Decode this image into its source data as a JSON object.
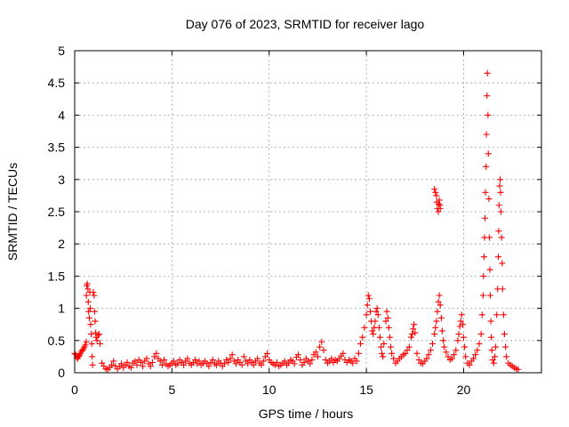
{
  "chart_data": {
    "type": "scatter",
    "title": "Day 076 of 2023, SRMTID for receiver lago",
    "xlabel": "GPS time / hours",
    "ylabel": "SRMTID / TECUs",
    "xlim": [
      0,
      24
    ],
    "ylim": [
      0,
      5
    ],
    "xticks": [
      0,
      5,
      10,
      15,
      20
    ],
    "xtick_labels": [
      "0",
      "5",
      "10",
      "15",
      "20"
    ],
    "yticks": [
      0,
      0.5,
      1,
      1.5,
      2,
      2.5,
      3,
      3.5,
      4,
      4.5,
      5
    ],
    "ytick_labels": [
      "0",
      "0.5",
      "1",
      "1.5",
      "2",
      "2.5",
      "3",
      "3.5",
      "4",
      "4.5",
      "5"
    ],
    "grid": true,
    "marker": "+",
    "color": "#ff0000",
    "series": [
      {
        "name": "lago",
        "points": [
          [
            0.0,
            0.3
          ],
          [
            0.05,
            0.28
          ],
          [
            0.1,
            0.24
          ],
          [
            0.15,
            0.22
          ],
          [
            0.2,
            0.25
          ],
          [
            0.25,
            0.27
          ],
          [
            0.3,
            0.3
          ],
          [
            0.35,
            0.33
          ],
          [
            0.4,
            0.35
          ],
          [
            0.45,
            0.37
          ],
          [
            0.5,
            0.4
          ],
          [
            0.55,
            0.43
          ],
          [
            0.6,
            0.48
          ],
          [
            0.6,
            1.2
          ],
          [
            0.62,
            1.35
          ],
          [
            0.65,
            1.38
          ],
          [
            0.68,
            1.3
          ],
          [
            0.7,
            1.1
          ],
          [
            0.72,
            0.95
          ],
          [
            0.75,
            0.85
          ],
          [
            0.78,
            1.25
          ],
          [
            0.8,
            1.0
          ],
          [
            0.82,
            0.75
          ],
          [
            0.85,
            0.6
          ],
          [
            0.88,
            0.45
          ],
          [
            0.9,
            0.25
          ],
          [
            0.92,
            0.12
          ],
          [
            0.95,
            1.25
          ],
          [
            1.0,
            1.2
          ],
          [
            1.02,
            0.95
          ],
          [
            1.05,
            0.8
          ],
          [
            1.08,
            0.62
          ],
          [
            1.1,
            0.55
          ],
          [
            1.15,
            0.5
          ],
          [
            1.2,
            0.58
          ],
          [
            1.25,
            0.6
          ],
          [
            1.3,
            0.45
          ],
          [
            1.4,
            0.15
          ],
          [
            1.5,
            0.1
          ],
          [
            1.6,
            0.06
          ],
          [
            1.7,
            0.05
          ],
          [
            1.8,
            0.08
          ],
          [
            1.9,
            0.12
          ],
          [
            2.0,
            0.18
          ],
          [
            2.1,
            0.1
          ],
          [
            2.2,
            0.06
          ],
          [
            2.3,
            0.1
          ],
          [
            2.4,
            0.14
          ],
          [
            2.5,
            0.08
          ],
          [
            2.6,
            0.12
          ],
          [
            2.7,
            0.16
          ],
          [
            2.8,
            0.1
          ],
          [
            2.9,
            0.08
          ],
          [
            3.0,
            0.15
          ],
          [
            3.1,
            0.18
          ],
          [
            3.2,
            0.12
          ],
          [
            3.3,
            0.2
          ],
          [
            3.4,
            0.16
          ],
          [
            3.5,
            0.1
          ],
          [
            3.6,
            0.18
          ],
          [
            3.7,
            0.22
          ],
          [
            3.8,
            0.14
          ],
          [
            3.9,
            0.1
          ],
          [
            4.0,
            0.16
          ],
          [
            4.1,
            0.25
          ],
          [
            4.2,
            0.3
          ],
          [
            4.3,
            0.22
          ],
          [
            4.4,
            0.18
          ],
          [
            4.5,
            0.12
          ],
          [
            4.6,
            0.2
          ],
          [
            4.7,
            0.14
          ],
          [
            4.8,
            0.1
          ],
          [
            4.9,
            0.12
          ],
          [
            5.0,
            0.15
          ],
          [
            5.1,
            0.18
          ],
          [
            5.2,
            0.12
          ],
          [
            5.3,
            0.14
          ],
          [
            5.4,
            0.2
          ],
          [
            5.5,
            0.16
          ],
          [
            5.6,
            0.12
          ],
          [
            5.7,
            0.18
          ],
          [
            5.8,
            0.22
          ],
          [
            5.9,
            0.15
          ],
          [
            6.0,
            0.12
          ],
          [
            6.1,
            0.16
          ],
          [
            6.2,
            0.2
          ],
          [
            6.3,
            0.14
          ],
          [
            6.4,
            0.18
          ],
          [
            6.5,
            0.12
          ],
          [
            6.6,
            0.15
          ],
          [
            6.7,
            0.18
          ],
          [
            6.8,
            0.14
          ],
          [
            6.9,
            0.1
          ],
          [
            7.0,
            0.16
          ],
          [
            7.1,
            0.2
          ],
          [
            7.2,
            0.14
          ],
          [
            7.3,
            0.12
          ],
          [
            7.4,
            0.18
          ],
          [
            7.5,
            0.15
          ],
          [
            7.6,
            0.1
          ],
          [
            7.7,
            0.14
          ],
          [
            7.8,
            0.2
          ],
          [
            7.9,
            0.16
          ],
          [
            8.0,
            0.22
          ],
          [
            8.1,
            0.28
          ],
          [
            8.2,
            0.18
          ],
          [
            8.3,
            0.14
          ],
          [
            8.4,
            0.2
          ],
          [
            8.5,
            0.16
          ],
          [
            8.6,
            0.12
          ],
          [
            8.7,
            0.25
          ],
          [
            8.8,
            0.18
          ],
          [
            8.9,
            0.14
          ],
          [
            9.0,
            0.2
          ],
          [
            9.1,
            0.16
          ],
          [
            9.2,
            0.12
          ],
          [
            9.3,
            0.18
          ],
          [
            9.4,
            0.22
          ],
          [
            9.5,
            0.15
          ],
          [
            9.6,
            0.12
          ],
          [
            9.7,
            0.18
          ],
          [
            9.8,
            0.25
          ],
          [
            9.9,
            0.3
          ],
          [
            10.0,
            0.2
          ],
          [
            10.1,
            0.16
          ],
          [
            10.2,
            0.14
          ],
          [
            10.3,
            0.12
          ],
          [
            10.4,
            0.16
          ],
          [
            10.5,
            0.1
          ],
          [
            10.6,
            0.12
          ],
          [
            10.7,
            0.15
          ],
          [
            10.8,
            0.18
          ],
          [
            10.9,
            0.12
          ],
          [
            11.0,
            0.15
          ],
          [
            11.1,
            0.2
          ],
          [
            11.2,
            0.18
          ],
          [
            11.3,
            0.14
          ],
          [
            11.4,
            0.24
          ],
          [
            11.5,
            0.28
          ],
          [
            11.6,
            0.2
          ],
          [
            11.7,
            0.12
          ],
          [
            11.8,
            0.16
          ],
          [
            11.9,
            0.22
          ],
          [
            12.0,
            0.18
          ],
          [
            12.1,
            0.14
          ],
          [
            12.2,
            0.2
          ],
          [
            12.3,
            0.28
          ],
          [
            12.4,
            0.32
          ],
          [
            12.5,
            0.25
          ],
          [
            12.6,
            0.4
          ],
          [
            12.7,
            0.48
          ],
          [
            12.8,
            0.35
          ],
          [
            12.9,
            0.2
          ],
          [
            13.0,
            0.15
          ],
          [
            13.1,
            0.18
          ],
          [
            13.2,
            0.22
          ],
          [
            13.3,
            0.16
          ],
          [
            13.4,
            0.2
          ],
          [
            13.5,
            0.18
          ],
          [
            13.6,
            0.22
          ],
          [
            13.7,
            0.26
          ],
          [
            13.8,
            0.3
          ],
          [
            13.9,
            0.2
          ],
          [
            14.0,
            0.16
          ],
          [
            14.1,
            0.2
          ],
          [
            14.2,
            0.18
          ],
          [
            14.3,
            0.15
          ],
          [
            14.4,
            0.22
          ],
          [
            14.5,
            0.18
          ],
          [
            14.6,
            0.3
          ],
          [
            14.7,
            0.45
          ],
          [
            14.8,
            0.55
          ],
          [
            14.9,
            0.7
          ],
          [
            15.0,
            0.9
          ],
          [
            15.05,
            1.05
          ],
          [
            15.1,
            1.2
          ],
          [
            15.15,
            1.15
          ],
          [
            15.2,
            0.95
          ],
          [
            15.25,
            0.8
          ],
          [
            15.3,
            0.65
          ],
          [
            15.35,
            0.6
          ],
          [
            15.4,
            0.7
          ],
          [
            15.45,
            0.8
          ],
          [
            15.5,
            0.95
          ],
          [
            15.55,
            1.0
          ],
          [
            15.6,
            0.9
          ],
          [
            15.65,
            0.7
          ],
          [
            15.7,
            0.55
          ],
          [
            15.75,
            0.4
          ],
          [
            15.8,
            0.3
          ],
          [
            15.85,
            0.25
          ],
          [
            15.9,
            0.45
          ],
          [
            16.0,
            0.8
          ],
          [
            16.05,
            0.95
          ],
          [
            16.1,
            0.85
          ],
          [
            16.15,
            0.7
          ],
          [
            16.2,
            0.55
          ],
          [
            16.25,
            0.4
          ],
          [
            16.3,
            0.3
          ],
          [
            16.4,
            0.22
          ],
          [
            16.5,
            0.15
          ],
          [
            16.6,
            0.18
          ],
          [
            16.7,
            0.22
          ],
          [
            16.8,
            0.25
          ],
          [
            16.9,
            0.28
          ],
          [
            17.0,
            0.3
          ],
          [
            17.1,
            0.35
          ],
          [
            17.2,
            0.4
          ],
          [
            17.3,
            0.55
          ],
          [
            17.35,
            0.6
          ],
          [
            17.4,
            0.68
          ],
          [
            17.45,
            0.75
          ],
          [
            17.5,
            0.62
          ],
          [
            17.6,
            0.3
          ],
          [
            17.7,
            0.2
          ],
          [
            17.8,
            0.15
          ],
          [
            17.9,
            0.14
          ],
          [
            18.0,
            0.18
          ],
          [
            18.1,
            0.22
          ],
          [
            18.2,
            0.28
          ],
          [
            18.3,
            0.35
          ],
          [
            18.4,
            0.45
          ],
          [
            18.5,
            0.6
          ],
          [
            18.55,
            0.7
          ],
          [
            18.6,
            0.8
          ],
          [
            18.65,
            0.95
          ],
          [
            18.7,
            1.1
          ],
          [
            18.75,
            1.2
          ],
          [
            18.8,
            1.05
          ],
          [
            18.85,
            0.85
          ],
          [
            18.9,
            0.65
          ],
          [
            18.95,
            0.5
          ],
          [
            18.5,
            2.85
          ],
          [
            18.55,
            2.8
          ],
          [
            18.6,
            2.75
          ],
          [
            18.62,
            2.65
          ],
          [
            18.65,
            2.55
          ],
          [
            18.7,
            2.5
          ],
          [
            18.72,
            2.62
          ],
          [
            18.75,
            2.68
          ],
          [
            18.78,
            2.6
          ],
          [
            18.8,
            2.55
          ],
          [
            19.0,
            0.4
          ],
          [
            19.1,
            0.32
          ],
          [
            19.2,
            0.25
          ],
          [
            19.3,
            0.2
          ],
          [
            19.4,
            0.22
          ],
          [
            19.5,
            0.28
          ],
          [
            19.6,
            0.35
          ],
          [
            19.7,
            0.5
          ],
          [
            19.75,
            0.6
          ],
          [
            19.8,
            0.72
          ],
          [
            19.85,
            0.8
          ],
          [
            19.9,
            0.9
          ],
          [
            19.95,
            0.75
          ],
          [
            20.0,
            0.55
          ],
          [
            20.05,
            0.4
          ],
          [
            20.1,
            0.25
          ],
          [
            20.2,
            0.15
          ],
          [
            20.3,
            0.12
          ],
          [
            20.4,
            0.18
          ],
          [
            20.5,
            0.22
          ],
          [
            20.6,
            0.28
          ],
          [
            20.7,
            0.35
          ],
          [
            20.8,
            0.45
          ],
          [
            20.9,
            0.6
          ],
          [
            20.95,
            0.9
          ],
          [
            21.0,
            1.2
          ],
          [
            21.02,
            1.5
          ],
          [
            21.05,
            1.8
          ],
          [
            21.07,
            2.1
          ],
          [
            21.1,
            2.4
          ],
          [
            21.12,
            2.8
          ],
          [
            21.15,
            3.2
          ],
          [
            21.17,
            3.7
          ],
          [
            21.2,
            4.3
          ],
          [
            21.22,
            4.65
          ],
          [
            21.25,
            4.0
          ],
          [
            21.27,
            3.4
          ],
          [
            21.3,
            2.7
          ],
          [
            21.32,
            2.1
          ],
          [
            21.35,
            1.6
          ],
          [
            21.37,
            1.2
          ],
          [
            21.4,
            0.8
          ],
          [
            21.42,
            0.55
          ],
          [
            21.45,
            0.35
          ],
          [
            21.5,
            0.2
          ],
          [
            21.55,
            0.15
          ],
          [
            21.6,
            0.25
          ],
          [
            21.65,
            0.4
          ],
          [
            21.7,
            0.9
          ],
          [
            21.75,
            1.3
          ],
          [
            21.78,
            1.8
          ],
          [
            21.8,
            2.2
          ],
          [
            21.82,
            2.6
          ],
          [
            21.85,
            2.9
          ],
          [
            21.88,
            3.0
          ],
          [
            21.9,
            2.8
          ],
          [
            21.92,
            2.5
          ],
          [
            21.95,
            2.1
          ],
          [
            21.98,
            1.7
          ],
          [
            22.0,
            1.3
          ],
          [
            22.05,
            0.9
          ],
          [
            22.1,
            0.6
          ],
          [
            22.15,
            0.4
          ],
          [
            22.2,
            0.25
          ],
          [
            22.3,
            0.15
          ],
          [
            22.4,
            0.12
          ],
          [
            22.5,
            0.1
          ],
          [
            22.6,
            0.08
          ],
          [
            22.7,
            0.06
          ],
          [
            22.8,
            0.05
          ]
        ]
      }
    ]
  }
}
